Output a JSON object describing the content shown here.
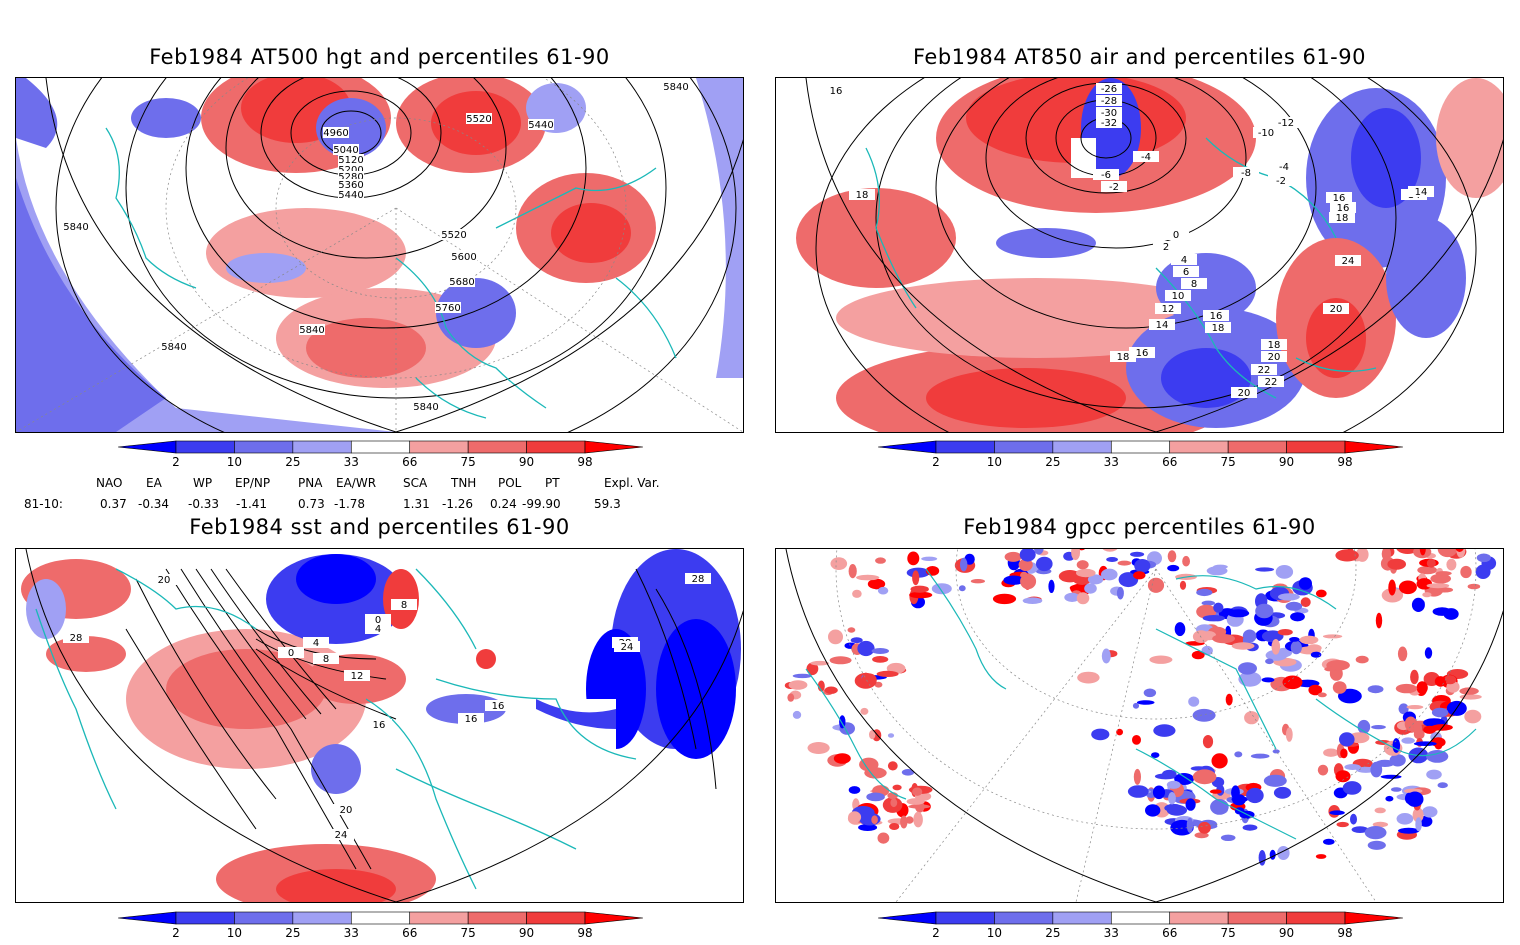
{
  "panels": {
    "p1": {
      "title": "Feb1984 AT500 hgt and percentiles 61-90",
      "contour_labels": [
        "4960",
        "5040",
        "5120",
        "5200",
        "5280",
        "5360",
        "5440",
        "5520",
        "5440",
        "5520",
        "5600",
        "5680",
        "5760",
        "5840",
        "5840",
        "5840",
        "5840",
        "5840"
      ]
    },
    "p2": {
      "title": "Feb1984 AT850 air and percentiles 61-90",
      "contour_labels": [
        "16",
        "-26",
        "-28",
        "-30",
        "-32",
        "-4",
        "-2",
        "-6",
        "-10",
        "-12",
        "14",
        "-8",
        "-4",
        "-2",
        "0",
        "2",
        "4",
        "6",
        "8",
        "10",
        "12",
        "14",
        "16",
        "18",
        "16",
        "18",
        "20",
        "20",
        "22",
        "22",
        "20",
        "18",
        "24",
        "14",
        "16",
        "18",
        "16",
        "18"
      ]
    },
    "p3": {
      "title": "Feb1984 sst and percentiles 61-90",
      "contour_labels": [
        "20",
        "28",
        "0",
        "4",
        "8",
        "12",
        "16",
        "20",
        "24",
        "28",
        "28",
        "24",
        "16",
        "16",
        "8",
        "0",
        "4"
      ]
    },
    "p4": {
      "title": "Feb1984 gpcc percentiles 61-90"
    }
  },
  "colorbar": {
    "labels": [
      "2",
      "10",
      "25",
      "33",
      "66",
      "75",
      "90",
      "98"
    ],
    "colors": [
      "#0000ff",
      "#3c3cf0",
      "#6e6eec",
      "#a0a0f4",
      "#ffffff",
      "#f4a0a0",
      "#ee6b6b",
      "#f03c3c",
      "#ff0000"
    ]
  },
  "indices": {
    "headers": [
      "NAO",
      "EA",
      "WP",
      "EP/NP",
      "PNA",
      "EA/WR",
      "SCA",
      "TNH",
      "POL",
      "PT",
      "Expl. Var."
    ],
    "row_label": "81-10:",
    "values": [
      "0.37",
      "-0.34",
      "-0.33",
      "-1.41",
      "0.73",
      "-1.78",
      "1.31",
      "-1.26",
      "0.24",
      "-99.90",
      "59.3"
    ]
  }
}
